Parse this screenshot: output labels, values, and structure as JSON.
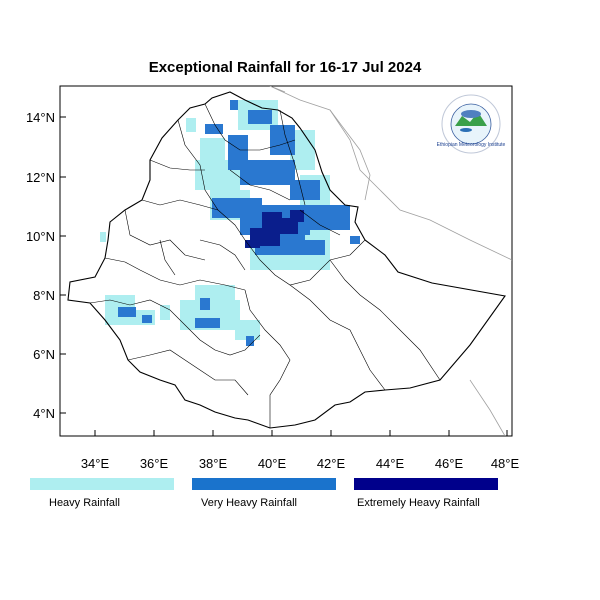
{
  "title": "Exceptional Rainfall for 16-17 Jul 2024",
  "x_ticks": [
    "34°E",
    "36°E",
    "38°E",
    "40°E",
    "42°E",
    "44°E",
    "46°E",
    "48°E"
  ],
  "y_ticks": [
    "4°N",
    "6°N",
    "8°N",
    "10°N",
    "12°N",
    "14°N"
  ],
  "legend": [
    {
      "label": "Heavy Rainfall",
      "color": "#aeeef0"
    },
    {
      "label": "Very Heavy Rainfall",
      "color": "#1a73cc"
    },
    {
      "label": "Extremely Heavy Rainfall",
      "color": "#00008b"
    }
  ],
  "logo": {
    "text": "Ethiopian Meteorology Institute"
  },
  "colors": {
    "heavy": "#aeeef0",
    "very_heavy": "#2a78d0",
    "extreme": "#0a1e8c",
    "border": "#000000",
    "neighbour": "#999999"
  }
}
